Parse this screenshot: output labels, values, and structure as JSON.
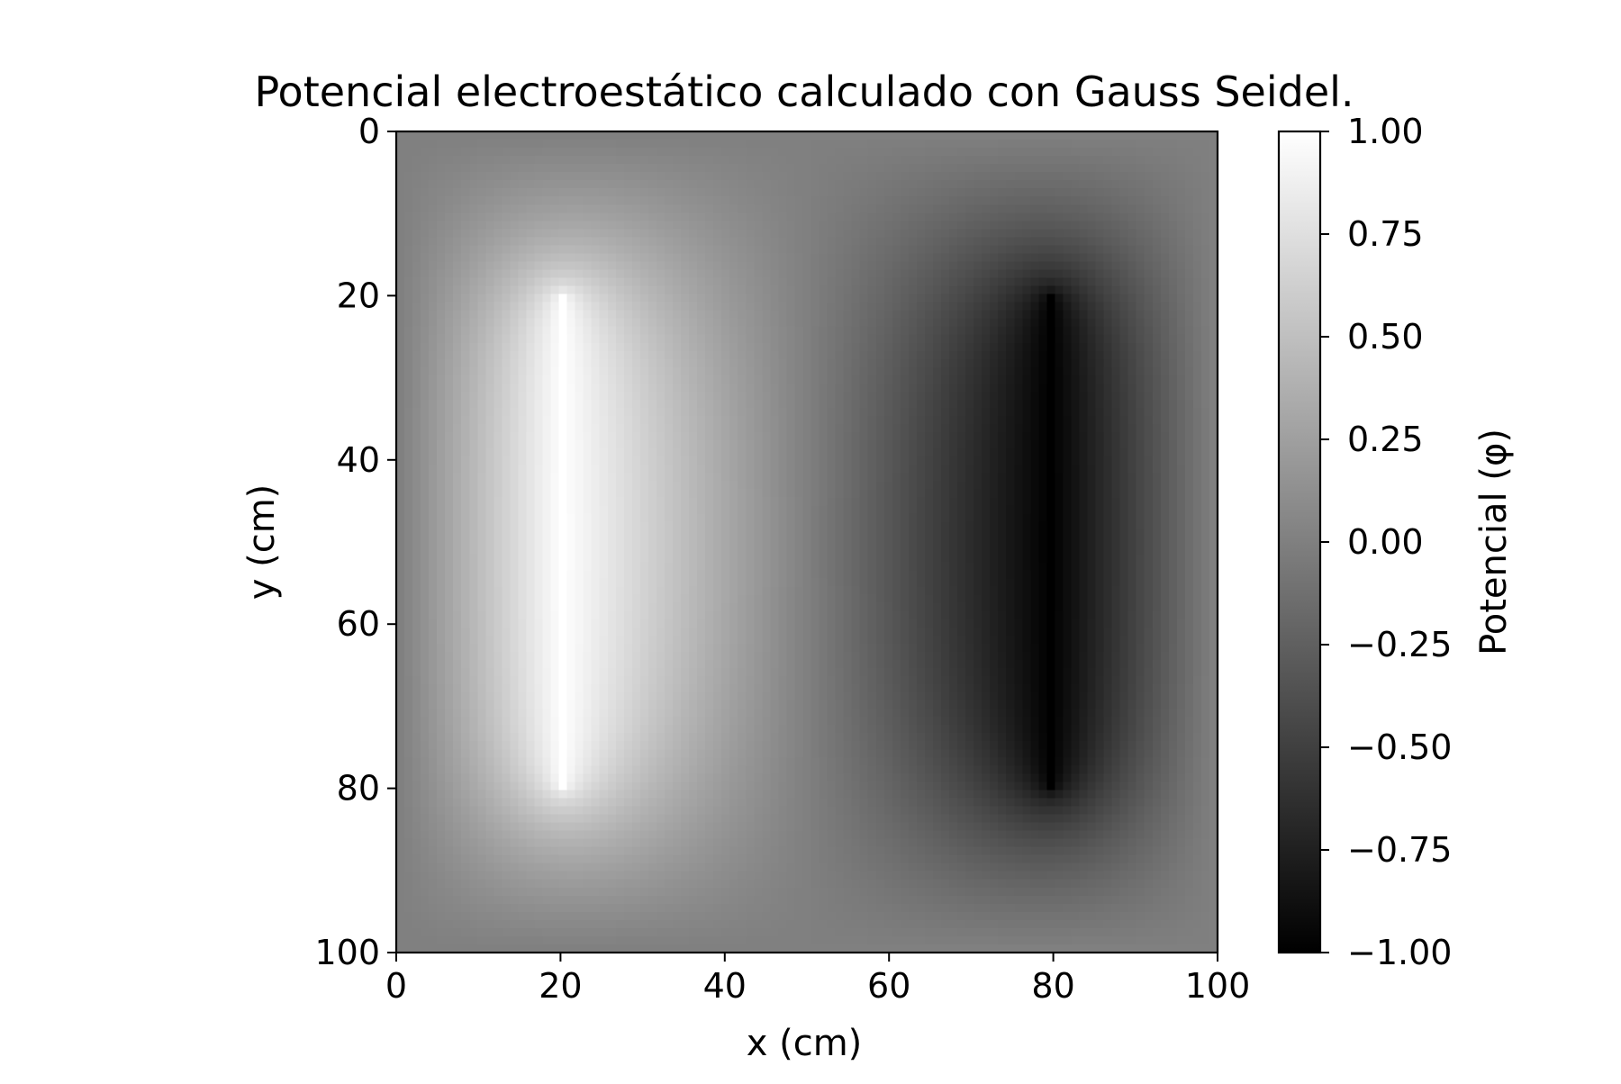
{
  "chart_data": {
    "type": "heatmap",
    "title": "Potencial electroestático calculado con Gauss Seidel.",
    "xlabel": "x (cm)",
    "ylabel": "y (cm)",
    "colorbar_label": "Potencial (φ)",
    "colormap": "gray",
    "xlim": [
      0,
      100
    ],
    "ylim": [
      100,
      0
    ],
    "y_axis_inverted": true,
    "grid": false,
    "grid_size": 101,
    "value_range": [
      -1.0,
      1.0
    ],
    "x_ticks": [
      "0",
      "20",
      "40",
      "60",
      "80",
      "100"
    ],
    "y_ticks": [
      "0",
      "20",
      "40",
      "60",
      "80",
      "100"
    ],
    "colorbar_ticks": [
      "1.00",
      "0.75",
      "0.50",
      "0.25",
      "0.00",
      "−0.25",
      "−0.50",
      "−0.75",
      "−1.00"
    ],
    "colorbar_values": [
      1.0,
      0.75,
      0.5,
      0.25,
      0.0,
      -0.25,
      -0.5,
      -0.75,
      -1.0
    ],
    "boundary_value": 0.0,
    "plates": [
      {
        "name": "positive plate",
        "x": 20,
        "y_start": 20,
        "y_end": 80,
        "potential": 1.0
      },
      {
        "name": "negative plate",
        "x": 80,
        "y_start": 20,
        "y_end": 80,
        "potential": -1.0
      }
    ]
  }
}
